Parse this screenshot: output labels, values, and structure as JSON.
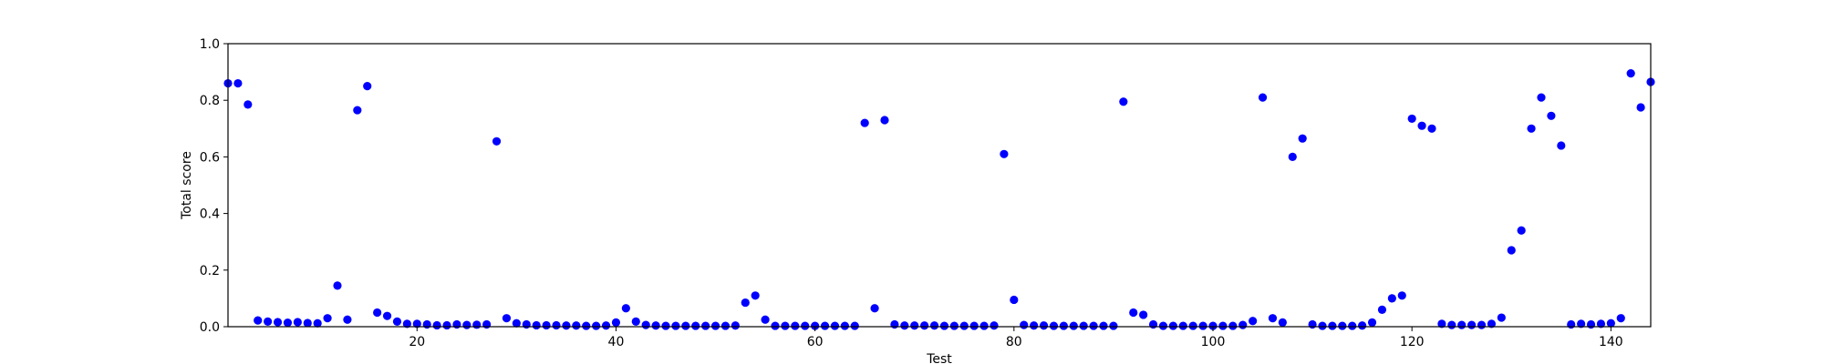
{
  "chart_data": {
    "type": "scatter",
    "title": "",
    "xlabel": "Test",
    "ylabel": "Total score",
    "xlim": [
      1,
      144
    ],
    "ylim": [
      0.0,
      1.0
    ],
    "xticks": [
      20,
      40,
      60,
      80,
      100,
      120,
      140
    ],
    "xtick_labels": [
      "20",
      "40",
      "60",
      "80",
      "100",
      "120",
      "140"
    ],
    "yticks": [
      0.0,
      0.2,
      0.4,
      0.6,
      0.8,
      1.0
    ],
    "ytick_labels": [
      "0.0",
      "0.2",
      "0.4",
      "0.6",
      "0.8",
      "1.0"
    ],
    "grid": false,
    "marker_color": "#0000ff",
    "series": [
      {
        "x": [
          1,
          2,
          3,
          4,
          5,
          6,
          7,
          8,
          9,
          10,
          11,
          12,
          13,
          14,
          15,
          16,
          17,
          18,
          19,
          20,
          21,
          22,
          23,
          24,
          25,
          26,
          27,
          28,
          29,
          30,
          31,
          32,
          33,
          34,
          35,
          36,
          37,
          38,
          39,
          40,
          41,
          42,
          43,
          44,
          45,
          46,
          47,
          48,
          49,
          50,
          51,
          52,
          53,
          54,
          55,
          56,
          57,
          58,
          59,
          60,
          61,
          62,
          63,
          64,
          65,
          66,
          67,
          68,
          69,
          70,
          71,
          72,
          73,
          74,
          75,
          76,
          77,
          78,
          79,
          80,
          81,
          82,
          83,
          84,
          85,
          86,
          87,
          88,
          89,
          90,
          91,
          92,
          93,
          94,
          95,
          96,
          97,
          98,
          99,
          100,
          101,
          102,
          103,
          104,
          105,
          106,
          107,
          108,
          109,
          110,
          111,
          112,
          113,
          114,
          115,
          116,
          117,
          118,
          119,
          120,
          121,
          122,
          123,
          124,
          125,
          126,
          127,
          128,
          129,
          130,
          131,
          132,
          133,
          134,
          135,
          136,
          137,
          138,
          139,
          140,
          141,
          142,
          143,
          144
        ],
        "values": [
          0.86,
          0.86,
          0.785,
          0.022,
          0.018,
          0.016,
          0.014,
          0.016,
          0.013,
          0.012,
          0.03,
          0.145,
          0.025,
          0.765,
          0.85,
          0.05,
          0.038,
          0.018,
          0.01,
          0.01,
          0.008,
          0.005,
          0.005,
          0.008,
          0.006,
          0.007,
          0.008,
          0.655,
          0.03,
          0.012,
          0.008,
          0.005,
          0.005,
          0.005,
          0.004,
          0.004,
          0.003,
          0.003,
          0.004,
          0.015,
          0.065,
          0.018,
          0.006,
          0.004,
          0.003,
          0.003,
          0.003,
          0.003,
          0.003,
          0.003,
          0.003,
          0.004,
          0.085,
          0.11,
          0.025,
          0.003,
          0.003,
          0.003,
          0.003,
          0.003,
          0.003,
          0.003,
          0.003,
          0.003,
          0.72,
          0.065,
          0.73,
          0.008,
          0.004,
          0.004,
          0.004,
          0.004,
          0.003,
          0.003,
          0.003,
          0.003,
          0.003,
          0.004,
          0.61,
          0.095,
          0.006,
          0.004,
          0.004,
          0.003,
          0.003,
          0.003,
          0.003,
          0.003,
          0.003,
          0.003,
          0.795,
          0.05,
          0.042,
          0.008,
          0.003,
          0.003,
          0.003,
          0.003,
          0.003,
          0.003,
          0.003,
          0.003,
          0.006,
          0.02,
          0.81,
          0.03,
          0.015,
          0.6,
          0.665,
          0.008,
          0.003,
          0.003,
          0.003,
          0.003,
          0.004,
          0.015,
          0.06,
          0.1,
          0.11,
          0.735,
          0.71,
          0.7,
          0.01,
          0.006,
          0.006,
          0.006,
          0.006,
          0.01,
          0.032,
          0.27,
          0.34,
          0.7,
          0.81,
          0.745,
          0.64,
          0.008,
          0.01,
          0.008,
          0.01,
          0.012,
          0.03,
          0.895,
          0.775,
          0.865
        ]
      }
    ]
  }
}
